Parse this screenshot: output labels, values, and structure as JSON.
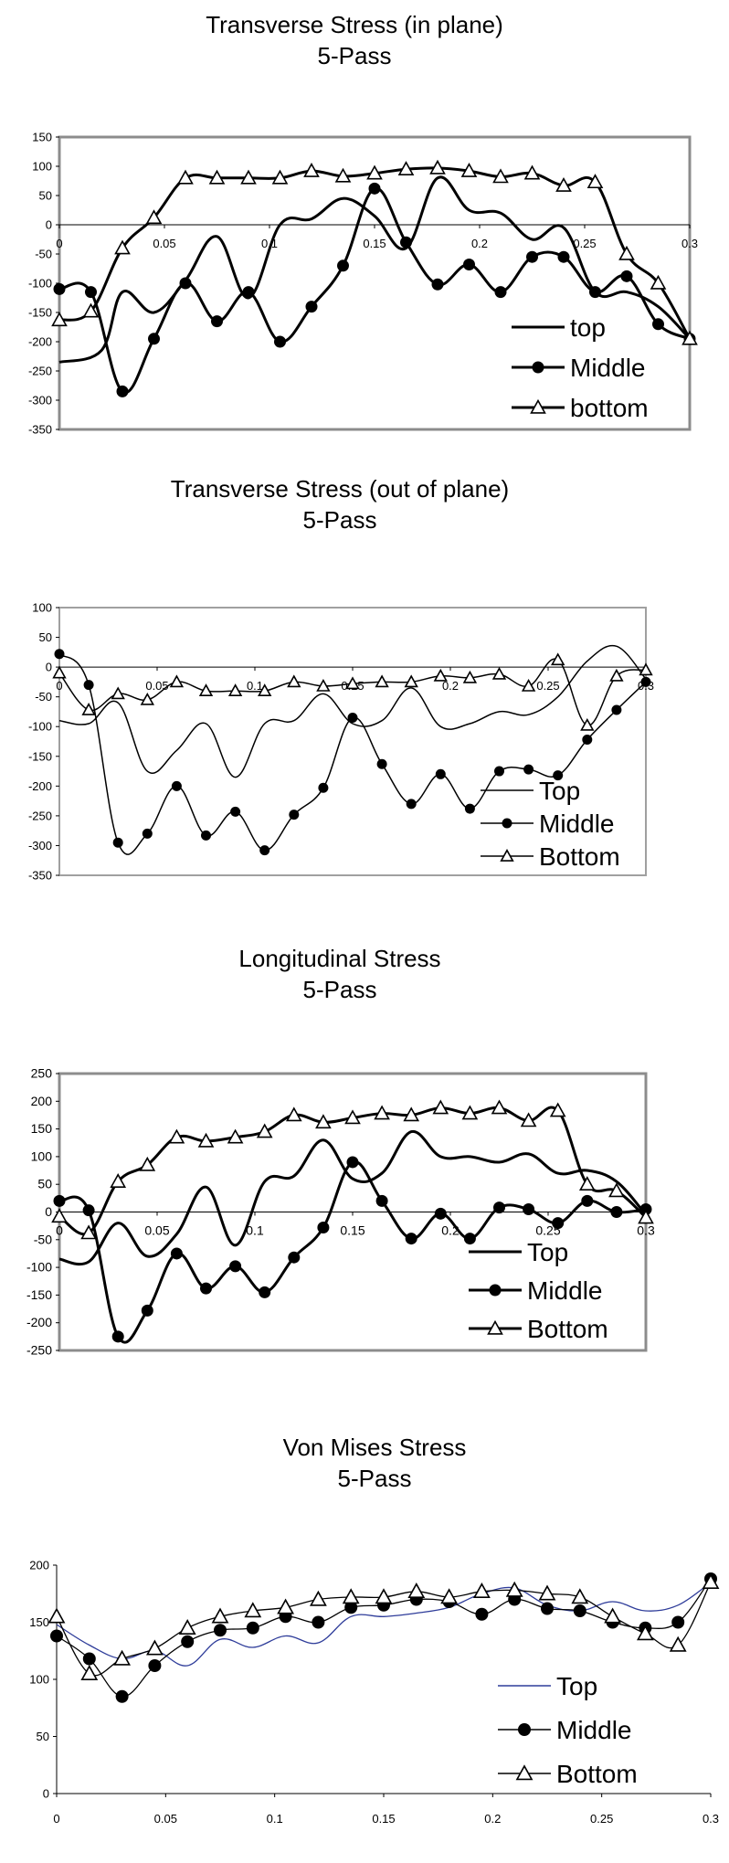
{
  "chart_data": [
    {
      "type": "line",
      "title": "Transverse Stress (in plane)",
      "subtitle": "5-Pass",
      "xlim": [
        0,
        0.3
      ],
      "ylim": [
        -350,
        150
      ],
      "xticks": [
        "0",
        "0.05",
        "0.1",
        "0.15",
        "0.2",
        "0.25",
        "0.3"
      ],
      "yticks": [
        "-350",
        "-300",
        "-250",
        "-200",
        "-150",
        "-100",
        "-50",
        "0",
        "50",
        "100",
        "150"
      ],
      "legend_position": "bottom-right",
      "grid": false,
      "series": [
        {
          "name": "top",
          "marker": "none",
          "x": [
            0,
            0.02,
            0.03,
            0.045,
            0.06,
            0.075,
            0.09,
            0.105,
            0.12,
            0.135,
            0.15,
            0.165,
            0.18,
            0.195,
            0.21,
            0.225,
            0.24,
            0.255,
            0.27,
            0.285,
            0.3
          ],
          "y": [
            -235,
            -215,
            -115,
            -150,
            -95,
            -20,
            -125,
            0,
            10,
            45,
            15,
            -40,
            80,
            25,
            20,
            -25,
            -5,
            -115,
            -115,
            -140,
            -195
          ]
        },
        {
          "name": "Middle",
          "marker": "circle",
          "x": [
            0,
            0.015,
            0.03,
            0.045,
            0.06,
            0.075,
            0.09,
            0.105,
            0.12,
            0.135,
            0.15,
            0.165,
            0.18,
            0.195,
            0.21,
            0.225,
            0.24,
            0.255,
            0.27,
            0.285,
            0.3
          ],
          "y": [
            -110,
            -115,
            -285,
            -195,
            -100,
            -165,
            -115,
            -200,
            -140,
            -70,
            62,
            -30,
            -102,
            -68,
            -115,
            -55,
            -55,
            -115,
            -88,
            -170,
            -195
          ]
        },
        {
          "name": "bottom",
          "marker": "triangle",
          "x": [
            0,
            0.015,
            0.03,
            0.045,
            0.06,
            0.075,
            0.09,
            0.105,
            0.12,
            0.135,
            0.15,
            0.165,
            0.18,
            0.195,
            0.21,
            0.225,
            0.24,
            0.255,
            0.27,
            0.285,
            0.3
          ],
          "y": [
            -163,
            -148,
            -40,
            12,
            80,
            80,
            80,
            80,
            92,
            83,
            88,
            95,
            97,
            92,
            82,
            88,
            67,
            73,
            -50,
            -100,
            -195
          ]
        }
      ]
    },
    {
      "type": "line",
      "title": "Transverse Stress (out of plane)",
      "subtitle": "5-Pass",
      "xlim": [
        0,
        0.3
      ],
      "ylim": [
        -350,
        100
      ],
      "xticks": [
        "0",
        "0.05",
        "0.1",
        "0.15",
        "0.2",
        "0.25",
        "0.3"
      ],
      "yticks": [
        "-350",
        "-300",
        "-250",
        "-200",
        "-150",
        "-100",
        "-50",
        "0",
        "50",
        "100"
      ],
      "legend_position": "bottom-right",
      "grid": false,
      "series": [
        {
          "name": "Top",
          "marker": "none",
          "x": [
            0,
            0.015,
            0.03,
            0.045,
            0.06,
            0.075,
            0.09,
            0.105,
            0.12,
            0.135,
            0.15,
            0.165,
            0.18,
            0.195,
            0.21,
            0.225,
            0.24,
            0.255,
            0.27,
            0.285,
            0.3
          ],
          "y": [
            -90,
            -95,
            -60,
            -175,
            -140,
            -95,
            -185,
            -95,
            -90,
            -45,
            -95,
            -90,
            -35,
            -100,
            -95,
            -75,
            -80,
            -50,
            10,
            35,
            -20
          ]
        },
        {
          "name": "Middle",
          "marker": "circle",
          "x": [
            0,
            0.015,
            0.03,
            0.045,
            0.06,
            0.075,
            0.09,
            0.105,
            0.12,
            0.135,
            0.15,
            0.165,
            0.18,
            0.195,
            0.21,
            0.225,
            0.24,
            0.255,
            0.27,
            0.285,
            0.3
          ],
          "y": [
            22,
            -30,
            -295,
            -280,
            -200,
            -283,
            -243,
            -308,
            -248,
            -203,
            -85,
            -163,
            -230,
            -180,
            -238,
            -175,
            -172,
            -182,
            -122,
            -72,
            -25
          ]
        },
        {
          "name": "Bottom",
          "marker": "triangle",
          "x": [
            0,
            0.015,
            0.03,
            0.045,
            0.06,
            0.075,
            0.09,
            0.105,
            0.12,
            0.135,
            0.15,
            0.165,
            0.18,
            0.195,
            0.21,
            0.225,
            0.24,
            0.255,
            0.27,
            0.285,
            0.3
          ],
          "y": [
            -10,
            -72,
            -45,
            -55,
            -25,
            -40,
            -40,
            -40,
            -25,
            -32,
            -28,
            -25,
            -25,
            -15,
            -18,
            -12,
            -32,
            12,
            -98,
            -15,
            -5
          ]
        }
      ]
    },
    {
      "type": "line",
      "title": "Longitudinal Stress",
      "subtitle": "5-Pass",
      "xlim": [
        0,
        0.3
      ],
      "ylim": [
        -250,
        250
      ],
      "xticks": [
        "0",
        "0.05",
        "0.1",
        "0.15",
        "0.2",
        "0.25",
        "0.3"
      ],
      "yticks": [
        "-250",
        "-200",
        "-150",
        "-100",
        "-50",
        "0",
        "50",
        "100",
        "150",
        "200",
        "250"
      ],
      "legend_position": "bottom-right",
      "grid": false,
      "series": [
        {
          "name": "Top",
          "marker": "none",
          "x": [
            0,
            0.015,
            0.03,
            0.045,
            0.06,
            0.075,
            0.09,
            0.105,
            0.12,
            0.135,
            0.15,
            0.165,
            0.18,
            0.195,
            0.21,
            0.225,
            0.24,
            0.255,
            0.27,
            0.285,
            0.3
          ],
          "y": [
            -85,
            -90,
            -20,
            -80,
            -40,
            45,
            -60,
            55,
            65,
            130,
            60,
            70,
            145,
            100,
            100,
            90,
            105,
            70,
            75,
            55,
            -5
          ]
        },
        {
          "name": "Middle",
          "marker": "circle",
          "x": [
            0,
            0.015,
            0.03,
            0.045,
            0.06,
            0.075,
            0.09,
            0.105,
            0.12,
            0.135,
            0.15,
            0.165,
            0.18,
            0.195,
            0.21,
            0.225,
            0.24,
            0.255,
            0.27,
            0.285,
            0.3
          ],
          "y": [
            20,
            3,
            -225,
            -178,
            -75,
            -138,
            -98,
            -145,
            -82,
            -28,
            90,
            20,
            -48,
            -3,
            -48,
            8,
            5,
            -20,
            20,
            0,
            5
          ]
        },
        {
          "name": "Bottom",
          "marker": "triangle",
          "x": [
            0,
            0.015,
            0.03,
            0.045,
            0.06,
            0.075,
            0.09,
            0.105,
            0.12,
            0.135,
            0.15,
            0.165,
            0.18,
            0.195,
            0.21,
            0.225,
            0.24,
            0.255,
            0.27,
            0.285,
            0.3
          ],
          "y": [
            -8,
            -38,
            55,
            85,
            135,
            128,
            135,
            145,
            175,
            162,
            170,
            178,
            175,
            188,
            178,
            188,
            165,
            183,
            50,
            38,
            -10
          ]
        }
      ]
    },
    {
      "type": "line",
      "title": "Von Mises Stress",
      "subtitle": "5-Pass",
      "xlim": [
        0,
        0.3
      ],
      "ylim": [
        0,
        200
      ],
      "xticks": [
        "0",
        "0.05",
        "0.1",
        "0.15",
        "0.2",
        "0.25",
        "0.3"
      ],
      "yticks": [
        "0",
        "50",
        "100",
        "150",
        "200"
      ],
      "legend_position": "bottom-right",
      "grid": false,
      "series": [
        {
          "name": "Top",
          "marker": "none",
          "color": "#2f3d9a",
          "x": [
            0,
            0.015,
            0.03,
            0.045,
            0.06,
            0.075,
            0.09,
            0.105,
            0.12,
            0.135,
            0.15,
            0.165,
            0.18,
            0.195,
            0.21,
            0.225,
            0.24,
            0.255,
            0.27,
            0.285,
            0.3
          ],
          "y": [
            148,
            130,
            118,
            125,
            112,
            135,
            128,
            138,
            132,
            155,
            155,
            158,
            163,
            175,
            180,
            165,
            160,
            168,
            160,
            165,
            185
          ]
        },
        {
          "name": "Middle",
          "marker": "circle",
          "color": "#000000",
          "x": [
            0,
            0.015,
            0.03,
            0.045,
            0.06,
            0.075,
            0.09,
            0.105,
            0.12,
            0.135,
            0.15,
            0.165,
            0.18,
            0.195,
            0.21,
            0.225,
            0.24,
            0.255,
            0.27,
            0.285,
            0.3
          ],
          "y": [
            138,
            118,
            85,
            112,
            133,
            143,
            145,
            155,
            150,
            163,
            165,
            170,
            168,
            157,
            170,
            162,
            160,
            150,
            145,
            150,
            188
          ]
        },
        {
          "name": "Bottom",
          "marker": "triangle",
          "color": "#000000",
          "x": [
            0,
            0.015,
            0.03,
            0.045,
            0.06,
            0.075,
            0.09,
            0.105,
            0.12,
            0.135,
            0.15,
            0.165,
            0.18,
            0.195,
            0.21,
            0.225,
            0.24,
            0.255,
            0.27,
            0.285,
            0.3
          ],
          "y": [
            155,
            105,
            118,
            127,
            145,
            155,
            160,
            163,
            170,
            172,
            172,
            177,
            172,
            177,
            178,
            175,
            172,
            155,
            140,
            130,
            185
          ]
        }
      ]
    }
  ]
}
